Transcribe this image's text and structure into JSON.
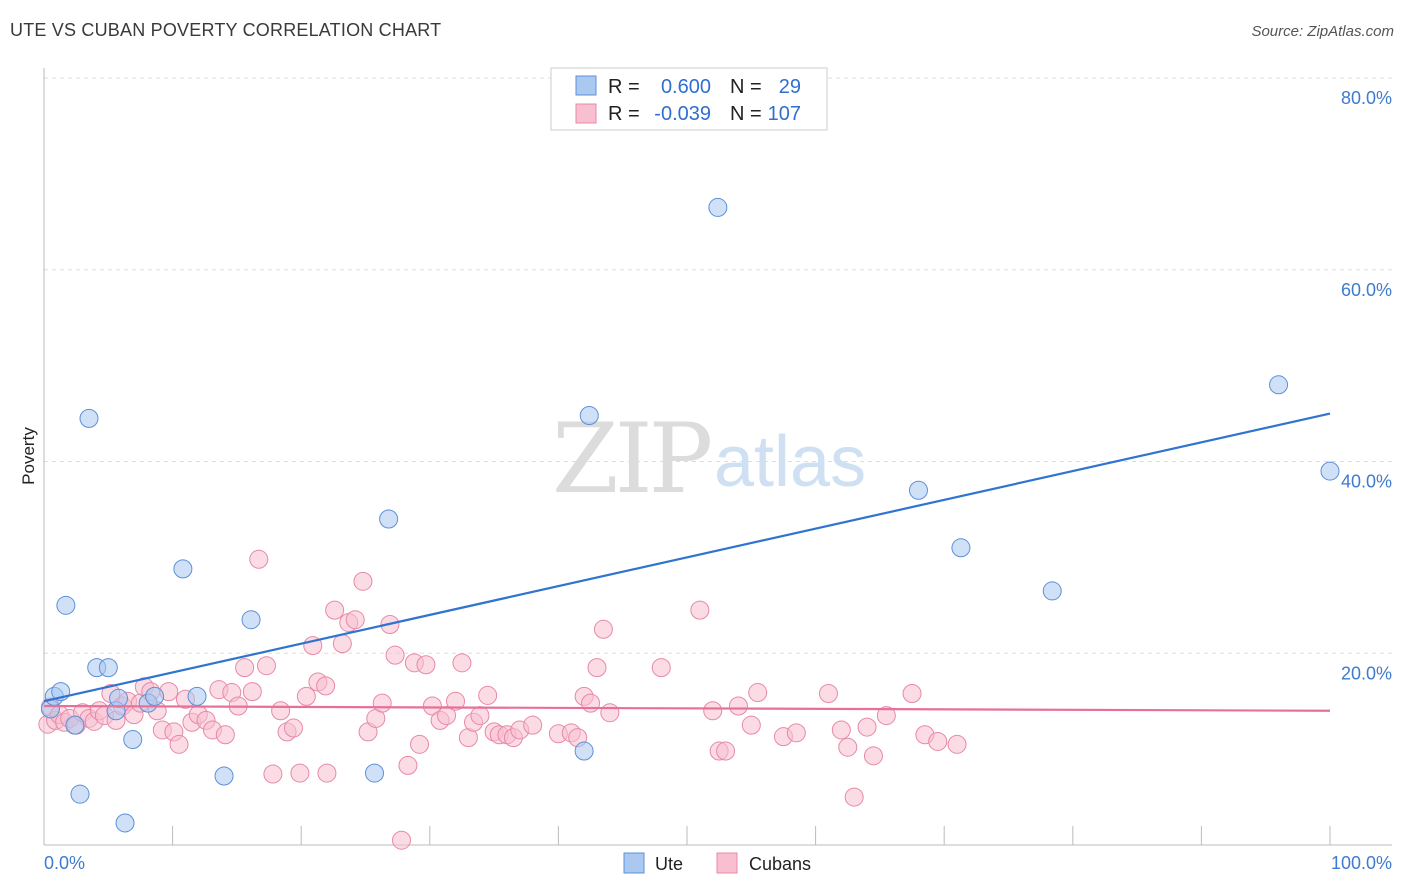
{
  "header": {
    "title": "UTE VS CUBAN POVERTY CORRELATION CHART",
    "source": "Source: ZipAtlas.com"
  },
  "watermark": {
    "zip": "ZIP",
    "atlas": "atlas"
  },
  "colors": {
    "ute_fill": "#aac8f0",
    "ute_stroke": "#5b90d8",
    "ute_line": "#2f74d0",
    "cuban_fill": "#f7bfd0",
    "cuban_stroke": "#e888a8",
    "cuban_line": "#e6709a",
    "grid": "#dddddd",
    "axis_label": "#3d7bd0"
  },
  "legend": {
    "rows": [
      {
        "r_label": "R =",
        "r_value": "0.600",
        "n_label": "N =",
        "n_value": "29"
      },
      {
        "r_label": "R =",
        "r_value": "-0.039",
        "n_label": "N =",
        "n_value": "107"
      }
    ]
  },
  "bottom_legend": {
    "ute": "Ute",
    "cubans": "Cubans"
  },
  "chart_data": {
    "type": "scatter",
    "title": "UTE VS CUBAN POVERTY CORRELATION CHART",
    "xlabel": "",
    "ylabel": "Poverty",
    "xlim": [
      0,
      100
    ],
    "ylim": [
      0,
      80
    ],
    "x_tick_labels": [
      "0.0%",
      "100.0%"
    ],
    "y_ticks": [
      20,
      40,
      60,
      80
    ],
    "y_tick_labels": [
      "20.0%",
      "40.0%",
      "60.0%",
      "80.0%"
    ],
    "grid": true,
    "series": [
      {
        "name": "Ute",
        "r": 0.6,
        "n": 29,
        "trend": {
          "x": [
            0,
            100
          ],
          "y": [
            15.0,
            45.0
          ]
        },
        "points": [
          [
            0.5,
            14.2
          ],
          [
            0.8,
            15.5
          ],
          [
            1.3,
            16.0
          ],
          [
            1.7,
            25.0
          ],
          [
            2.4,
            12.5
          ],
          [
            2.8,
            5.3
          ],
          [
            3.5,
            44.5
          ],
          [
            4.1,
            18.5
          ],
          [
            5.0,
            18.5
          ],
          [
            5.6,
            14.0
          ],
          [
            5.8,
            15.3
          ],
          [
            6.9,
            11.0
          ],
          [
            8.1,
            14.8
          ],
          [
            8.6,
            15.5
          ],
          [
            10.8,
            28.8
          ],
          [
            11.9,
            15.5
          ],
          [
            14.0,
            7.2
          ],
          [
            16.1,
            23.5
          ],
          [
            25.7,
            7.5
          ],
          [
            26.8,
            34.0
          ],
          [
            42.0,
            9.8
          ],
          [
            42.4,
            44.8
          ],
          [
            52.4,
            66.5
          ],
          [
            68.0,
            37.0
          ],
          [
            71.3,
            31.0
          ],
          [
            78.4,
            26.5
          ],
          [
            96.0,
            48.0
          ],
          [
            100.0,
            39.0
          ],
          [
            6.3,
            2.3
          ]
        ]
      },
      {
        "name": "Cubans",
        "r": -0.039,
        "n": 107,
        "trend": {
          "x": [
            0,
            100
          ],
          "y": [
            14.5,
            14.0
          ]
        },
        "points": [
          [
            0.3,
            12.6
          ],
          [
            0.5,
            14.4
          ],
          [
            0.9,
            13.0
          ],
          [
            1.2,
            13.6
          ],
          [
            1.6,
            12.8
          ],
          [
            2.0,
            13.2
          ],
          [
            2.5,
            12.5
          ],
          [
            3.0,
            13.8
          ],
          [
            3.5,
            13.2
          ],
          [
            3.9,
            12.9
          ],
          [
            4.3,
            14.0
          ],
          [
            4.7,
            13.5
          ],
          [
            5.2,
            15.8
          ],
          [
            5.6,
            13.0
          ],
          [
            6.1,
            14.5
          ],
          [
            6.5,
            15.0
          ],
          [
            7.0,
            13.6
          ],
          [
            7.5,
            14.8
          ],
          [
            7.8,
            16.5
          ],
          [
            8.3,
            16.0
          ],
          [
            8.8,
            14.0
          ],
          [
            9.2,
            12.0
          ],
          [
            9.7,
            16.0
          ],
          [
            10.1,
            11.8
          ],
          [
            10.5,
            10.5
          ],
          [
            11.0,
            15.2
          ],
          [
            11.5,
            12.8
          ],
          [
            12.0,
            13.6
          ],
          [
            12.6,
            13.0
          ],
          [
            13.1,
            12.0
          ],
          [
            13.6,
            16.2
          ],
          [
            14.1,
            11.5
          ],
          [
            14.6,
            15.9
          ],
          [
            15.1,
            14.5
          ],
          [
            15.6,
            18.5
          ],
          [
            16.2,
            16.0
          ],
          [
            16.7,
            29.8
          ],
          [
            17.3,
            18.7
          ],
          [
            17.8,
            7.4
          ],
          [
            18.4,
            14.0
          ],
          [
            18.9,
            11.8
          ],
          [
            19.4,
            12.2
          ],
          [
            19.9,
            7.5
          ],
          [
            20.4,
            15.5
          ],
          [
            20.9,
            20.8
          ],
          [
            21.3,
            17.0
          ],
          [
            21.9,
            16.6
          ],
          [
            22.0,
            7.5
          ],
          [
            22.6,
            24.5
          ],
          [
            23.2,
            21.0
          ],
          [
            23.7,
            23.2
          ],
          [
            24.2,
            23.5
          ],
          [
            24.8,
            27.5
          ],
          [
            25.2,
            11.8
          ],
          [
            25.8,
            13.2
          ],
          [
            26.3,
            14.8
          ],
          [
            26.9,
            23.0
          ],
          [
            27.3,
            19.8
          ],
          [
            27.8,
            0.5
          ],
          [
            28.3,
            8.3
          ],
          [
            28.8,
            19.0
          ],
          [
            29.2,
            10.5
          ],
          [
            29.7,
            18.8
          ],
          [
            30.2,
            14.5
          ],
          [
            30.8,
            13.0
          ],
          [
            31.3,
            13.5
          ],
          [
            32.0,
            15.0
          ],
          [
            32.5,
            19.0
          ],
          [
            33.0,
            11.2
          ],
          [
            33.4,
            12.8
          ],
          [
            33.9,
            13.5
          ],
          [
            34.5,
            15.6
          ],
          [
            35.0,
            11.8
          ],
          [
            35.4,
            11.5
          ],
          [
            36.0,
            11.5
          ],
          [
            36.5,
            11.2
          ],
          [
            37.0,
            12.0
          ],
          [
            38.0,
            12.5
          ],
          [
            40.0,
            11.6
          ],
          [
            41.0,
            11.7
          ],
          [
            41.5,
            11.2
          ],
          [
            42.0,
            15.5
          ],
          [
            42.5,
            14.8
          ],
          [
            43.0,
            18.5
          ],
          [
            43.5,
            22.5
          ],
          [
            44.0,
            13.8
          ],
          [
            48.0,
            18.5
          ],
          [
            51.0,
            24.5
          ],
          [
            52.0,
            14.0
          ],
          [
            52.5,
            9.8
          ],
          [
            53.0,
            9.8
          ],
          [
            54.0,
            14.5
          ],
          [
            55.0,
            12.5
          ],
          [
            55.5,
            15.9
          ],
          [
            57.5,
            11.3
          ],
          [
            58.5,
            11.7
          ],
          [
            61.0,
            15.8
          ],
          [
            62.0,
            12.0
          ],
          [
            62.5,
            10.2
          ],
          [
            63.0,
            5.0
          ],
          [
            64.0,
            12.3
          ],
          [
            64.5,
            9.3
          ],
          [
            65.5,
            13.5
          ],
          [
            67.5,
            15.8
          ],
          [
            68.5,
            11.5
          ],
          [
            69.5,
            10.8
          ],
          [
            71.0,
            10.5
          ]
        ]
      }
    ]
  }
}
